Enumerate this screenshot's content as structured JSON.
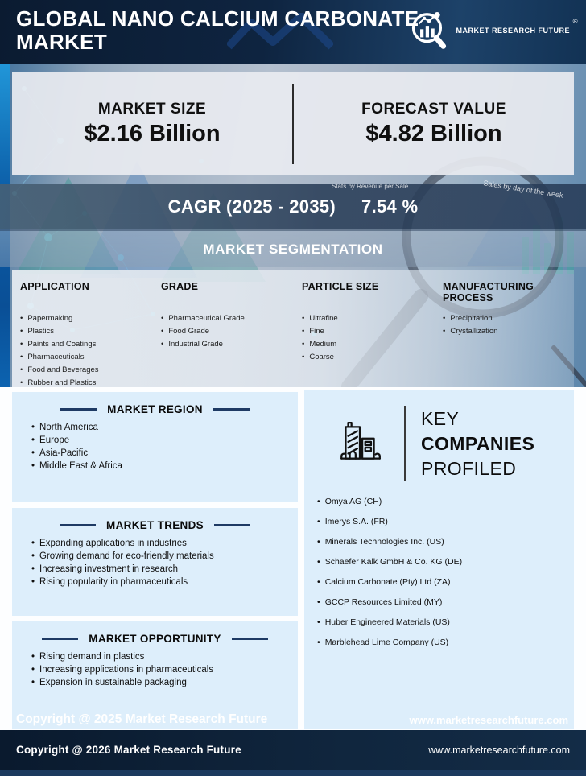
{
  "brand": {
    "name": "MARKET RESEARCH FUTURE",
    "registered": "®"
  },
  "header": {
    "title_line1": "GLOBAL NANO CALCIUM CARBONATE",
    "title_line2": "MARKET"
  },
  "stats": {
    "market_size_label": "MARKET SIZE",
    "market_size_value": "$2.16 Billion",
    "forecast_label": "FORECAST VALUE",
    "forecast_value": "$4.82 Billion",
    "cagr_label": "CAGR (2025 - 2035)",
    "cagr_value": "7.54 %"
  },
  "background_labels": {
    "label1": "Stats by Revenue per Sale",
    "label2": "Sales by day of the week"
  },
  "segmentation": {
    "title": "MARKET SEGMENTATION",
    "columns": [
      {
        "title": "APPLICATION",
        "items": [
          "Papermaking",
          "Plastics",
          "Paints and Coatings",
          "Pharmaceuticals",
          "Food and Beverages",
          "Rubber and Plastics"
        ]
      },
      {
        "title": "GRADE",
        "items": [
          "Pharmaceutical Grade",
          "Food Grade",
          "Industrial Grade"
        ]
      },
      {
        "title": "PARTICLE SIZE",
        "items": [
          "Ultrafine",
          "Fine",
          "Medium",
          "Coarse"
        ]
      },
      {
        "title": "MANUFACTURING PROCESS",
        "items": [
          "Precipitation",
          "Crystallization"
        ]
      }
    ]
  },
  "region": {
    "title": "MARKET REGION",
    "items": [
      "North America",
      "Europe",
      "Asia-Pacific",
      "Middle East & Africa"
    ]
  },
  "trends": {
    "title": "MARKET TRENDS",
    "items": [
      "Expanding applications in industries",
      "Growing demand for eco-friendly materials",
      "Increasing investment in research",
      "Rising popularity in pharmaceuticals"
    ]
  },
  "opportunity": {
    "title": "MARKET OPPORTUNITY",
    "items": [
      "Rising demand in plastics",
      "Increasing applications in pharmaceuticals",
      "Expansion in sustainable packaging"
    ]
  },
  "companies": {
    "title_line1": "KEY",
    "title_line2": "COMPANIES",
    "title_line3": "PROFILED",
    "items": [
      "Omya AG (CH)",
      "Imerys S.A. (FR)",
      "Minerals Technologies Inc. (US)",
      "Schaefer Kalk GmbH & Co. KG (DE)",
      "Calcium Carbonate (Pty) Ltd (ZA)",
      "GCCP Resources Limited (MY)",
      "Huber Engineered Materials (US)",
      "Marblehead Lime Company (US)"
    ]
  },
  "watermarks": {
    "left": "Copyright @ 2025 Market Research Future",
    "right": "www.marketresearchfuture.com"
  },
  "footer": {
    "copyright": "Copyright @ 2026 Market Research Future",
    "website": "www.marketresearchfuture.com"
  },
  "colors": {
    "header_navy": "#0e2440",
    "footer_navy": "#10263e",
    "accent_dash_navy": "#1e3a64",
    "panel_light_blue": "#ddeefb",
    "edge_strip_blue": "#0b5ca6",
    "text_white": "#ffffff",
    "text_black": "#101010"
  }
}
